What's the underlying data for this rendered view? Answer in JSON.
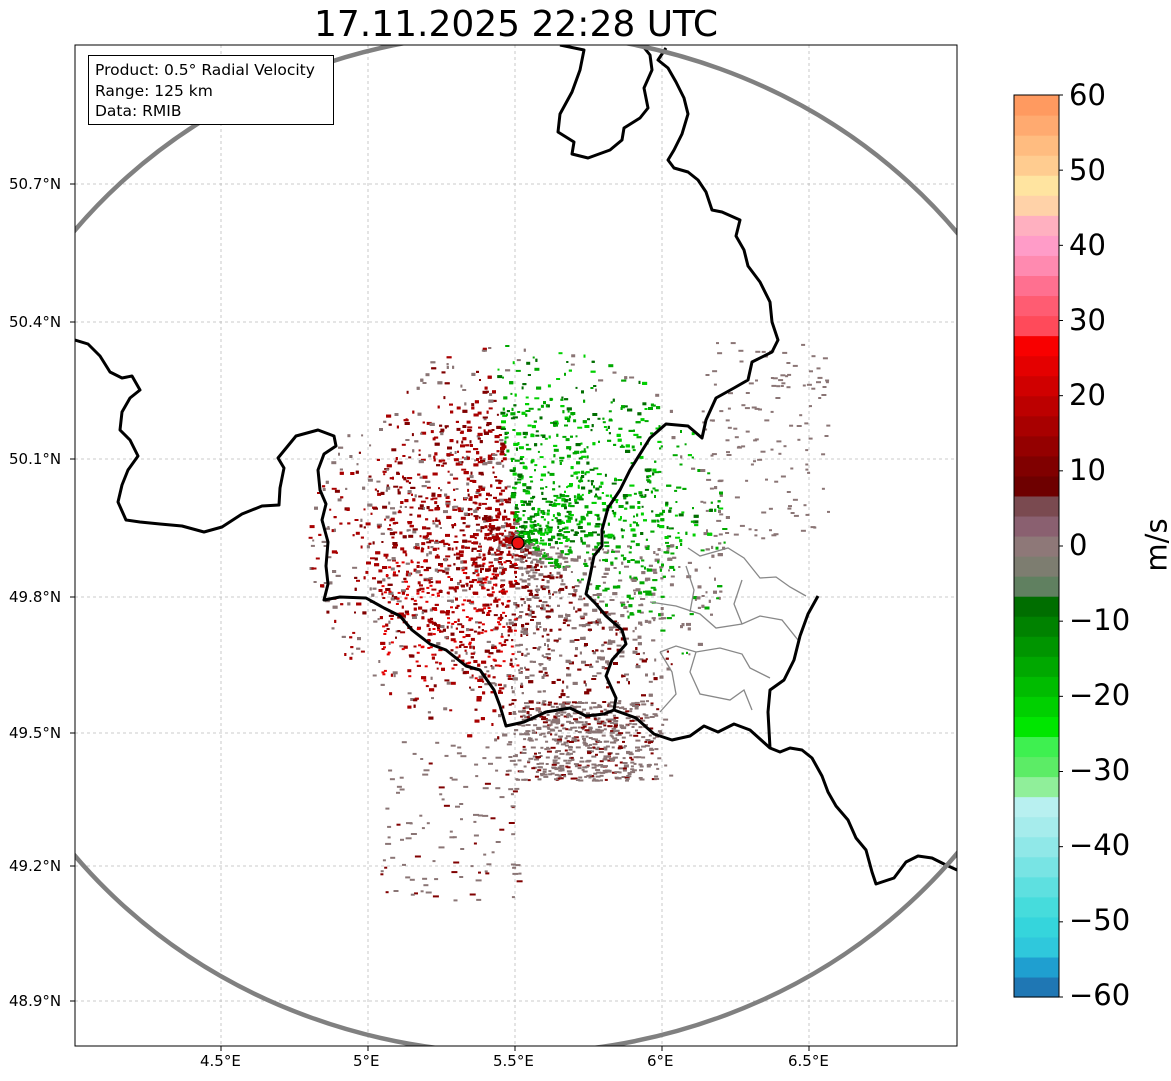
{
  "title": "17.11.2025 22:28 UTC",
  "info": {
    "product": "Product: 0.5° Radial Velocity",
    "range": "Range: 125 km",
    "source": "Data: RMIB"
  },
  "axes": {
    "lat_labels": [
      "50.7°N",
      "50.4°N",
      "50.1°N",
      "49.8°N",
      "49.5°N",
      "49.2°N",
      "48.9°N"
    ],
    "lon_labels": [
      "4.5°E",
      "5°E",
      "5.5°E",
      "6°E",
      "6.5°E"
    ]
  },
  "radar": {
    "site_lon": 5.5,
    "site_lat": 49.92,
    "range_km": 125
  },
  "colorbar": {
    "unit": "m/s",
    "tick_labels": [
      "60",
      "50",
      "40",
      "30",
      "20",
      "10",
      "0",
      "−10",
      "−20",
      "−30",
      "−40",
      "−50",
      "−60"
    ],
    "min": -60,
    "max": 60,
    "colors": [
      "#1f77b4",
      "#1f9fd0",
      "#2fc8dc",
      "#35d5dc",
      "#46dcdc",
      "#5ee0e0",
      "#78e4e4",
      "#90e8e8",
      "#a6ecec",
      "#b8f0f0",
      "#90ef9a",
      "#5cec66",
      "#3ef050",
      "#00e600",
      "#00d000",
      "#00bc00",
      "#00a800",
      "#009500",
      "#008200",
      "#006e00",
      "#608060",
      "#7d7d70",
      "#8e7878",
      "#8a6070",
      "#7a4a50",
      "#6e0000",
      "#800000",
      "#940000",
      "#a80000",
      "#bc0000",
      "#d00000",
      "#e40000",
      "#f80000",
      "#ff4a5a",
      "#ff5c72",
      "#ff7090",
      "#ff8ab0",
      "#ff9cc8",
      "#ffb0c0",
      "#ffd2a8",
      "#ffe4a0",
      "#ffcc90",
      "#ffbc80",
      "#ffaa70",
      "#ff9a60"
    ]
  },
  "velocity_colors": {
    "inbound_strong": "#00a800",
    "inbound_light": "#00d000",
    "inbound_dark": "#006e00",
    "near_zero": "#8a7575",
    "outbound_dark": "#800000",
    "outbound": "#a80000",
    "outbound_bright": "#e40000"
  }
}
